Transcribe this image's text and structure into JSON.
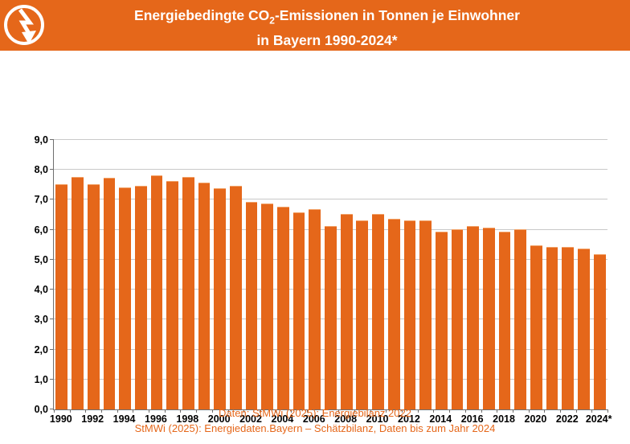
{
  "header": {
    "title_prefix": "Energiebedingte CO",
    "title_sub": "2",
    "title_suffix": "-Emissionen in Tonnen je Einwohner",
    "title_line2": "in Bayern 1990-2024*",
    "logo_icon": "lightning-arrow-icon",
    "bg_color": "#E5671A",
    "text_color": "#FFFFFF"
  },
  "chart_data": {
    "type": "bar",
    "title": "Energiebedingte CO2-Emissionen in Tonnen je Einwohner in Bayern 1990-2024*",
    "categories": [
      1990,
      1991,
      1992,
      1993,
      1994,
      1995,
      1996,
      1997,
      1998,
      1999,
      2000,
      2001,
      2002,
      2003,
      2004,
      2005,
      2006,
      2007,
      2008,
      2009,
      2010,
      2011,
      2012,
      2013,
      2014,
      2015,
      2016,
      2017,
      2018,
      2019,
      2020,
      2021,
      2022,
      2023,
      2024
    ],
    "values": [
      7.5,
      7.75,
      7.5,
      7.7,
      7.4,
      7.45,
      7.8,
      7.6,
      7.75,
      7.55,
      7.35,
      7.45,
      6.9,
      6.85,
      6.75,
      6.55,
      6.65,
      6.1,
      6.5,
      6.3,
      6.5,
      6.35,
      6.3,
      6.3,
      5.9,
      6.0,
      6.1,
      6.05,
      5.9,
      6.0,
      5.45,
      5.4,
      5.4,
      5.35,
      5.15
    ],
    "unit": "Tonnen CO2 je Einwohner",
    "ylim": [
      0,
      9
    ],
    "ytick_step": 1,
    "ytick_labels": [
      "0,0",
      "1,0",
      "2,0",
      "3,0",
      "4,0",
      "5,0",
      "6,0",
      "7,0",
      "8,0",
      "9,0"
    ],
    "xtick_labels": [
      "1990",
      "1992",
      "1994",
      "1996",
      "1998",
      "2000",
      "2002",
      "2004",
      "2006",
      "2008",
      "2010",
      "2012",
      "2014",
      "2016",
      "2018",
      "2020",
      "2022",
      "2024*"
    ],
    "grid": "horizontal",
    "legend": "none",
    "bar_color": "#E5671A",
    "gridline_color": "#C9C9C9",
    "axis_color": "#6F6F6F"
  },
  "footer": {
    "line1": "Daten: StMWi (2025): Energiebilanz 2022",
    "line2": "StMWi (2025): Energiedaten.Bayern – Schätzbilanz, Daten bis zum Jahr 2024",
    "text_color": "#E5671A"
  }
}
